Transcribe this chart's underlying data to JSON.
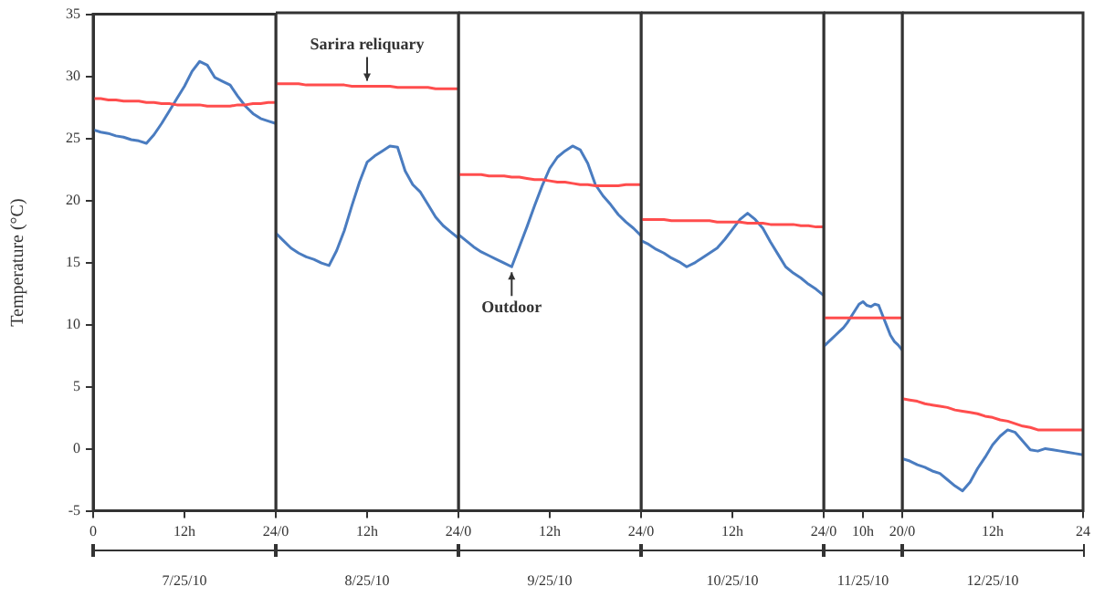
{
  "chart_data": [
    {
      "type": "line",
      "ylabel": "Temperature (°C)",
      "xlabel": "7/25/10",
      "grid": false,
      "marker": "none",
      "ylim": [
        -5,
        35
      ],
      "yticks": [
        -5,
        0,
        5,
        10,
        15,
        20,
        25,
        30,
        35
      ],
      "categories": [
        "0",
        null,
        null,
        null,
        null,
        null,
        null,
        null,
        null,
        null,
        null,
        null,
        "12h",
        null,
        null,
        null,
        null,
        null,
        null,
        null,
        null,
        null,
        null,
        null,
        "24/0"
      ],
      "series": [
        {
          "color": "#ff4d4d",
          "values": [
            28.2,
            28.2,
            28.1,
            28.1,
            28.0,
            28.0,
            28.0,
            27.9,
            27.9,
            27.8,
            27.8,
            27.7,
            27.7,
            27.7,
            27.7,
            27.6,
            27.6,
            27.6,
            27.6,
            27.7,
            27.7,
            27.8,
            27.8,
            27.9,
            27.9
          ]
        },
        {
          "color": "#4a7cc0",
          "values": [
            25.7,
            25.5,
            25.4,
            25.2,
            25.1,
            24.9,
            24.8,
            24.6,
            25.3,
            26.2,
            27.2,
            28.2,
            29.2,
            30.4,
            31.2,
            30.9,
            29.9,
            29.6,
            29.3,
            28.4,
            27.6,
            27.0,
            26.6,
            26.4,
            26.2
          ]
        }
      ]
    },
    {
      "type": "line",
      "xlabel": "8/25/10",
      "grid": false,
      "marker": "none",
      "tick_labels": "x",
      "ylim": [
        -5,
        35
      ],
      "yticks": [
        -5,
        0,
        5,
        10,
        15,
        20,
        25,
        30,
        35
      ],
      "categories": [
        null,
        null,
        null,
        null,
        null,
        null,
        null,
        null,
        null,
        null,
        null,
        null,
        "12h",
        null,
        null,
        null,
        null,
        null,
        null,
        null,
        null,
        null,
        null,
        null,
        "24/0"
      ],
      "annotations": [
        {
          "text": "Sarira reliquary",
          "y": 29.1
        }
      ],
      "series": [
        {
          "color": "#ff4d4d",
          "values": [
            29.3,
            29.3,
            29.3,
            29.3,
            29.2,
            29.2,
            29.2,
            29.2,
            29.2,
            29.2,
            29.1,
            29.1,
            29.1,
            29.1,
            29.1,
            29.1,
            29.0,
            29.0,
            29.0,
            29.0,
            29.0,
            28.9,
            28.9,
            28.9,
            28.9
          ]
        },
        {
          "color": "#4a7cc0",
          "values": [
            17.3,
            16.7,
            16.1,
            15.7,
            15.4,
            15.2,
            14.9,
            14.7,
            15.9,
            17.5,
            19.5,
            21.4,
            23.0,
            23.5,
            23.9,
            24.3,
            24.2,
            22.3,
            21.2,
            20.6,
            19.6,
            18.6,
            17.9,
            17.4,
            16.9
          ]
        }
      ]
    },
    {
      "type": "line",
      "xlabel": "9/25/10",
      "grid": false,
      "marker": "none",
      "tick_labels": "x",
      "ylim": [
        -5,
        35
      ],
      "yticks": [
        -5,
        0,
        5,
        10,
        15,
        20,
        25,
        30,
        35
      ],
      "categories": [
        null,
        null,
        null,
        null,
        null,
        null,
        null,
        null,
        null,
        null,
        null,
        null,
        "12h",
        null,
        null,
        null,
        null,
        null,
        null,
        null,
        null,
        null,
        null,
        null,
        "24/0"
      ],
      "annotations": [
        {
          "text": "Outdoor",
          "y": 14.6
        }
      ],
      "series": [
        {
          "color": "#ff4d4d",
          "values": [
            22.0,
            22.0,
            22.0,
            22.0,
            21.9,
            21.9,
            21.9,
            21.8,
            21.8,
            21.7,
            21.6,
            21.6,
            21.5,
            21.4,
            21.4,
            21.3,
            21.2,
            21.2,
            21.1,
            21.1,
            21.1,
            21.1,
            21.2,
            21.2,
            21.2
          ]
        },
        {
          "color": "#4a7cc0",
          "values": [
            17.2,
            16.7,
            16.2,
            15.8,
            15.5,
            15.2,
            14.9,
            14.6,
            16.2,
            17.8,
            19.5,
            21.1,
            22.5,
            23.4,
            23.9,
            24.3,
            24.0,
            22.9,
            21.2,
            20.3,
            19.6,
            18.8,
            18.2,
            17.7,
            17.1
          ]
        }
      ]
    },
    {
      "type": "line",
      "xlabel": "10/25/10",
      "grid": false,
      "marker": "none",
      "tick_labels": "x",
      "ylim": [
        -5,
        35
      ],
      "yticks": [
        -5,
        0,
        5,
        10,
        15,
        20,
        25,
        30,
        35
      ],
      "categories": [
        null,
        null,
        null,
        null,
        null,
        null,
        null,
        null,
        null,
        null,
        null,
        null,
        "12h",
        null,
        null,
        null,
        null,
        null,
        null,
        null,
        null,
        null,
        null,
        null,
        "24/0"
      ],
      "series": [
        {
          "color": "#ff4d4d",
          "values": [
            18.4,
            18.4,
            18.4,
            18.4,
            18.3,
            18.3,
            18.3,
            18.3,
            18.3,
            18.3,
            18.2,
            18.2,
            18.2,
            18.2,
            18.1,
            18.1,
            18.1,
            18.0,
            18.0,
            18.0,
            18.0,
            17.9,
            17.9,
            17.8,
            17.8
          ]
        },
        {
          "color": "#4a7cc0",
          "values": [
            16.7,
            16.4,
            16.0,
            15.7,
            15.3,
            15.0,
            14.6,
            14.9,
            15.3,
            15.7,
            16.1,
            16.8,
            17.6,
            18.4,
            18.9,
            18.4,
            17.7,
            16.6,
            15.6,
            14.6,
            14.1,
            13.7,
            13.2,
            12.8,
            12.3
          ]
        }
      ]
    },
    {
      "type": "line",
      "xlabel": "11/25/10",
      "grid": false,
      "marker": "none",
      "tick_labels": "x",
      "ylim": [
        -5,
        35
      ],
      "yticks": [
        -5,
        0,
        5,
        10,
        15,
        20,
        25,
        30,
        35
      ],
      "categories": [
        null,
        null,
        null,
        null,
        null,
        null,
        null,
        null,
        null,
        null,
        "10h",
        null,
        null,
        null,
        null,
        null,
        null,
        null,
        null,
        null,
        "20/0"
      ],
      "series": [
        {
          "color": "#ff4d4d",
          "values": [
            10.5,
            10.5,
            10.5,
            10.5,
            10.5,
            10.5,
            10.5,
            10.5,
            10.5,
            10.5,
            10.5,
            10.5,
            10.5,
            10.5,
            10.5,
            10.5,
            10.5,
            10.5,
            10.5,
            10.5,
            10.5
          ]
        },
        {
          "color": "#4a7cc0",
          "values": [
            8.2,
            8.5,
            8.8,
            9.1,
            9.4,
            9.7,
            10.1,
            10.6,
            11.1,
            11.6,
            11.8,
            11.5,
            11.4,
            11.6,
            11.5,
            10.7,
            9.9,
            9.1,
            8.6,
            8.3,
            7.9
          ]
        }
      ]
    },
    {
      "type": "line",
      "xlabel": "12/25/10",
      "grid": false,
      "marker": "none",
      "tick_labels": "x",
      "ylim": [
        -5,
        35
      ],
      "yticks": [
        -5,
        0,
        5,
        10,
        15,
        20,
        25,
        30,
        35
      ],
      "categories": [
        null,
        null,
        null,
        null,
        null,
        null,
        null,
        null,
        null,
        null,
        null,
        null,
        "12h",
        null,
        null,
        null,
        null,
        null,
        null,
        null,
        null,
        null,
        null,
        null,
        "24"
      ],
      "series": [
        {
          "color": "#ff4d4d",
          "values": [
            4.0,
            3.9,
            3.8,
            3.6,
            3.5,
            3.4,
            3.3,
            3.1,
            3.0,
            2.9,
            2.8,
            2.6,
            2.5,
            2.3,
            2.2,
            2.0,
            1.8,
            1.7,
            1.5,
            1.5,
            1.5,
            1.5,
            1.5,
            1.5,
            1.5
          ]
        },
        {
          "color": "#4a7cc0",
          "values": [
            -0.8,
            -1.0,
            -1.3,
            -1.5,
            -1.8,
            -2.0,
            -2.5,
            -3.0,
            -3.4,
            -2.7,
            -1.6,
            -0.7,
            0.3,
            1.0,
            1.5,
            1.3,
            0.6,
            -0.1,
            -0.2,
            0.0,
            -0.1,
            -0.2,
            -0.3,
            -0.4,
            -0.5
          ]
        }
      ]
    }
  ]
}
